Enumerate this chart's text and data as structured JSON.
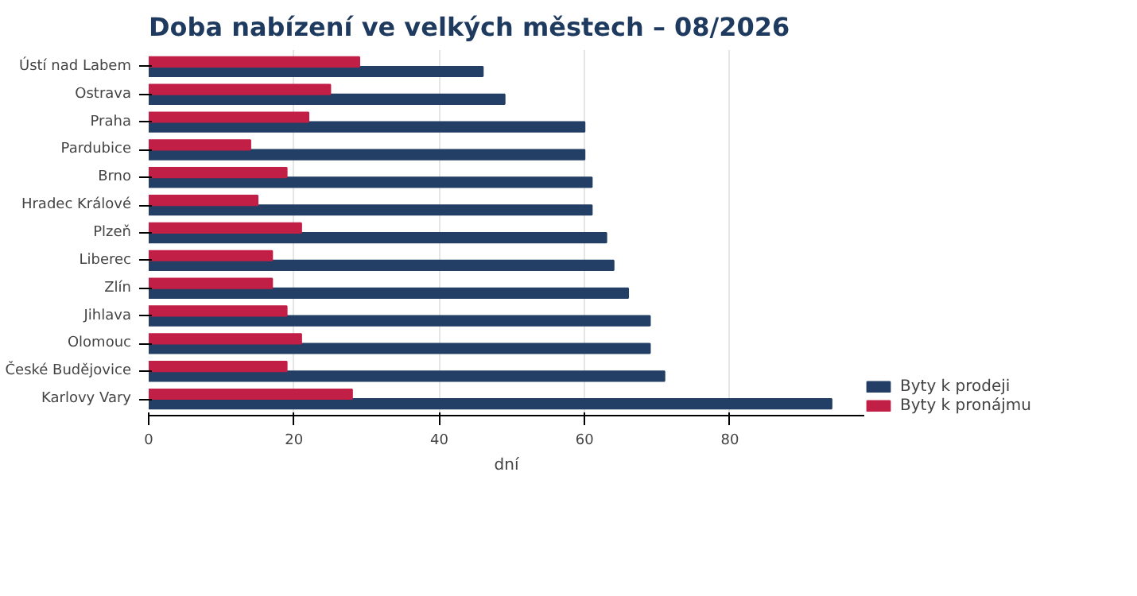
{
  "chart_data": {
    "type": "bar",
    "orientation": "horizontal",
    "title": "Doba nabízení ve velkých městech – 08/2026",
    "xlabel": "dní",
    "categories": [
      "Ústí nad Labem",
      "Ostrava",
      "Praha",
      "Pardubice",
      "Brno",
      "Hradec Králové",
      "Plzeň",
      "Liberec",
      "Zlín",
      "Jihlava",
      "Olomouc",
      "České Budějovice",
      "Karlovy Vary"
    ],
    "series": [
      {
        "name": "Byty k prodeji",
        "color": "#233f66",
        "values": [
          46,
          49,
          60,
          60,
          61,
          61,
          63,
          64,
          66,
          69,
          69,
          71,
          94
        ]
      },
      {
        "name": "Byty k pronájmu",
        "color": "#c21f46",
        "values": [
          29,
          25,
          22,
          14,
          19,
          15,
          21,
          17,
          17,
          19,
          21,
          19,
          28
        ]
      }
    ],
    "xlim": [
      0,
      98.5
    ],
    "xticks": [
      0,
      20,
      40,
      60,
      80
    ],
    "grid": "x",
    "legend": "bottom right"
  }
}
